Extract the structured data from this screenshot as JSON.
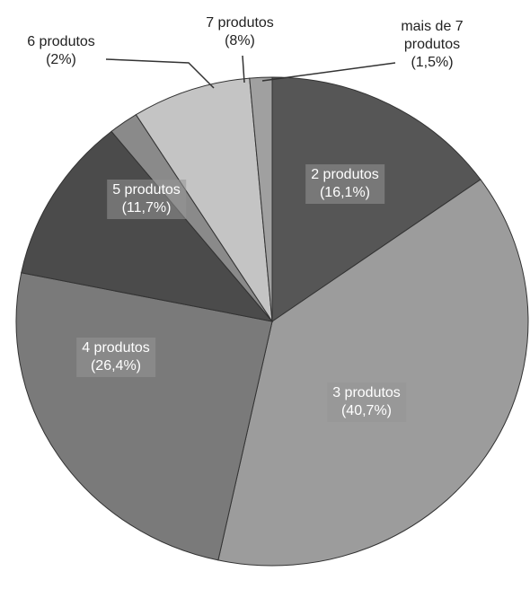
{
  "chart_data": {
    "type": "pie",
    "categories": [
      "2 produtos",
      "3 produtos",
      "4 produtos",
      "5 produtos",
      "6 produtos",
      "7 produtos",
      "mais de 7 produtos"
    ],
    "values": [
      16.1,
      40.7,
      26.4,
      11.7,
      2,
      8,
      1.5
    ],
    "value_labels": [
      "(16,1%)",
      "(40,7%)",
      "(26,4%)",
      "(11,7%)",
      "(2%)",
      "(8%)",
      "(1,5%)"
    ],
    "colors": [
      "#565656",
      "#9c9c9c",
      "#7a7a7a",
      "#4b4b4b",
      "#8a8a8a",
      "#c4c4c4",
      "#a0a0a0"
    ]
  }
}
